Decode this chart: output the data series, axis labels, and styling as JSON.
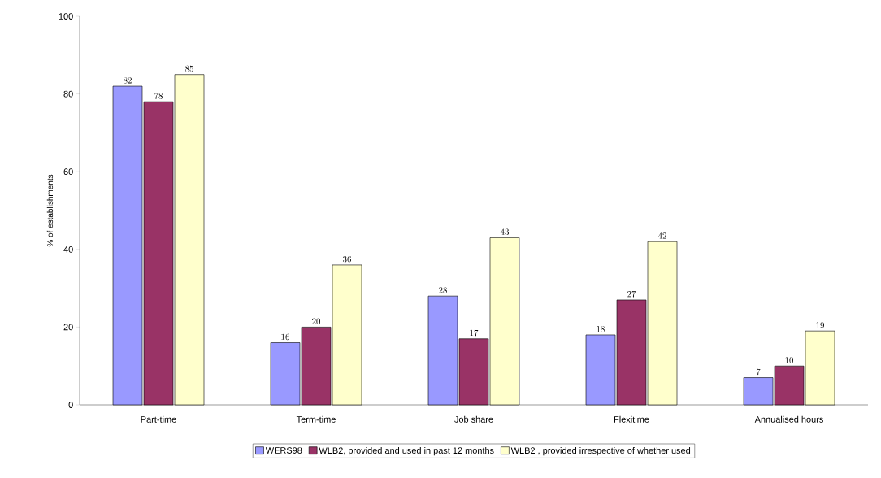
{
  "chart_data": {
    "type": "bar",
    "ylabel": "% of establishments",
    "categories": [
      "Part-time",
      "Term-time",
      "Job share",
      "Flexitime",
      "Annualised hours"
    ],
    "series": [
      {
        "name": "WERS98",
        "color": "#9999ff",
        "values": [
          82,
          16,
          28,
          18,
          7
        ]
      },
      {
        "name": "WLB2, provided and used in past 12 months",
        "color": "#993366",
        "values": [
          78,
          20,
          17,
          27,
          10
        ]
      },
      {
        "name": "WLB2 , provided irrespective of whether used",
        "color": "#ffffcc",
        "values": [
          85,
          36,
          43,
          42,
          19
        ]
      }
    ],
    "ylim": [
      0,
      100
    ],
    "yticks": [
      0,
      20,
      40,
      60,
      80,
      100
    ],
    "data_labels": true,
    "grid": false,
    "legend": "bottom"
  }
}
